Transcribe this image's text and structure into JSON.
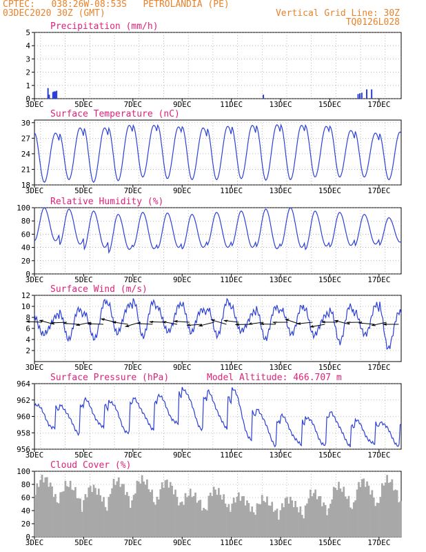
{
  "header": {
    "line1_left": "CPTEC:   038:26W-08:53S   PETROLANDIA (PE)",
    "line2_left": "03DEC2020 30Z (GMT)",
    "line1_right": "Vertical Grid Line: 30Z",
    "line2_right": "TQ0126L028"
  },
  "colors": {
    "header": "#e8822a",
    "title": "#e0207a",
    "line": "#2b3fd6",
    "wind": "#000000",
    "cloud": "#a8a8a8",
    "grid": "#888888"
  },
  "chart_data": [
    {
      "id": "precipitation",
      "type": "bar",
      "title": "Precipitation (mm/h)",
      "ylim": [
        0,
        5
      ],
      "yticks": [
        0,
        1,
        2,
        3,
        4,
        5
      ],
      "x_labels": [
        "3DEC",
        "5DEC",
        "7DEC",
        "9DEC",
        "11DEC",
        "13DEC",
        "15DEC",
        "17DEC"
      ],
      "x_days": [
        3,
        17.9
      ],
      "events": [
        {
          "day": 3.55,
          "value": 0.8
        },
        {
          "day": 3.6,
          "value": 0.3
        },
        {
          "day": 3.75,
          "value": 0.5
        },
        {
          "day": 3.8,
          "value": 0.55
        },
        {
          "day": 3.85,
          "value": 0.55
        },
        {
          "day": 3.9,
          "value": 0.6
        },
        {
          "day": 12.3,
          "value": 0.3
        },
        {
          "day": 16.15,
          "value": 0.35
        },
        {
          "day": 16.22,
          "value": 0.4
        },
        {
          "day": 16.3,
          "value": 0.45
        },
        {
          "day": 16.5,
          "value": 0.7
        },
        {
          "day": 16.7,
          "value": 0.7
        }
      ]
    },
    {
      "id": "temperature",
      "type": "line",
      "title": "Surface Temperature (nC)",
      "ylim": [
        18,
        30.5
      ],
      "yticks": [
        18,
        21,
        24,
        27,
        30
      ],
      "x_labels": [
        "3DEC",
        "5DEC",
        "7DEC",
        "9DEC",
        "11DEC",
        "13DEC",
        "15DEC",
        "17DEC"
      ],
      "diurnal": {
        "min_values": [
          18.5,
          19.0,
          18.5,
          18.8,
          19.5,
          19.2,
          19.0,
          19.0,
          19.2,
          18.9,
          19.0,
          19.5,
          19.5,
          19.5,
          19.0
        ],
        "max_values": [
          28.0,
          29.0,
          29.0,
          29.5,
          29.5,
          29.2,
          29.0,
          29.3,
          29.5,
          29.6,
          29.5,
          29.3,
          28.5,
          28.0,
          28.2
        ]
      }
    },
    {
      "id": "humidity",
      "type": "line",
      "title": "Relative Humidity (%)",
      "ylim": [
        0,
        100
      ],
      "yticks": [
        0,
        20,
        40,
        60,
        80,
        100
      ],
      "x_labels": [
        "3DEC",
        "5DEC",
        "7DEC",
        "9DEC",
        "11DEC",
        "13DEC",
        "15DEC",
        "17DEC"
      ],
      "diurnal": {
        "max_values": [
          100,
          98,
          95,
          90,
          93,
          92,
          90,
          93,
          95,
          98,
          100,
          95,
          93,
          90,
          85
        ],
        "min_values": [
          50,
          45,
          40,
          37,
          38,
          40,
          40,
          40,
          40,
          38,
          40,
          42,
          43,
          45,
          48
        ]
      }
    },
    {
      "id": "wind",
      "type": "line",
      "title": "Surface Wind (m/s)",
      "ylim": [
        0,
        12
      ],
      "yticks": [
        2,
        4,
        6,
        8,
        10,
        12
      ],
      "x_labels": [
        "3DEC",
        "5DEC",
        "7DEC",
        "9DEC",
        "11DEC",
        "13DEC",
        "15DEC",
        "17DEC"
      ],
      "diurnal": {
        "max_values": [
          8.5,
          9.5,
          10.5,
          10.8,
          10.5,
          10.0,
          9.8,
          10.5,
          9.0,
          10.0,
          9.5,
          9.0,
          9.8,
          10.0,
          9.5
        ],
        "min_values": [
          4.5,
          4.5,
          4.0,
          5.0,
          5.0,
          5.0,
          5.5,
          5.0,
          5.0,
          4.5,
          5.0,
          4.5,
          4.0,
          4.5,
          2.5
        ]
      },
      "vector_speed": 7.0
    },
    {
      "id": "pressure",
      "type": "line",
      "title": "Surface Pressure (hPa)",
      "annotation": "Model Altitude: 466.707 m",
      "ylim": [
        956,
        964
      ],
      "yticks": [
        956,
        958,
        960,
        962,
        964
      ],
      "x_labels": [
        "3DEC",
        "5DEC",
        "7DEC",
        "9DEC",
        "11DEC",
        "13DEC",
        "15DEC",
        "17DEC"
      ],
      "diurnal": {
        "max_values": [
          961.5,
          962.0,
          962.0,
          962.2,
          962.5,
          963.5,
          963.0,
          963.5,
          961.0,
          960.0,
          960.0,
          960.5,
          959.5,
          959.5,
          959.5
        ],
        "min_values": [
          958.5,
          958.0,
          958.5,
          958.0,
          958.5,
          959.0,
          958.5,
          958.5,
          957.0,
          956.5,
          956.5,
          956.5,
          956.5,
          956.5,
          956.5
        ]
      }
    },
    {
      "id": "cloud",
      "type": "bar",
      "title": "Cloud Cover (%)",
      "ylim": [
        0,
        100
      ],
      "yticks": [
        0,
        20,
        40,
        60,
        80,
        100
      ],
      "x_labels": [
        "3DEC",
        "5DEC",
        "7DEC",
        "9DEC",
        "11DEC",
        "13DEC",
        "15DEC",
        "17DEC"
      ],
      "daily_peaks": [
        95,
        85,
        80,
        90,
        92,
        88,
        70,
        75,
        65,
        60,
        60,
        70,
        80,
        88,
        90
      ]
    }
  ]
}
